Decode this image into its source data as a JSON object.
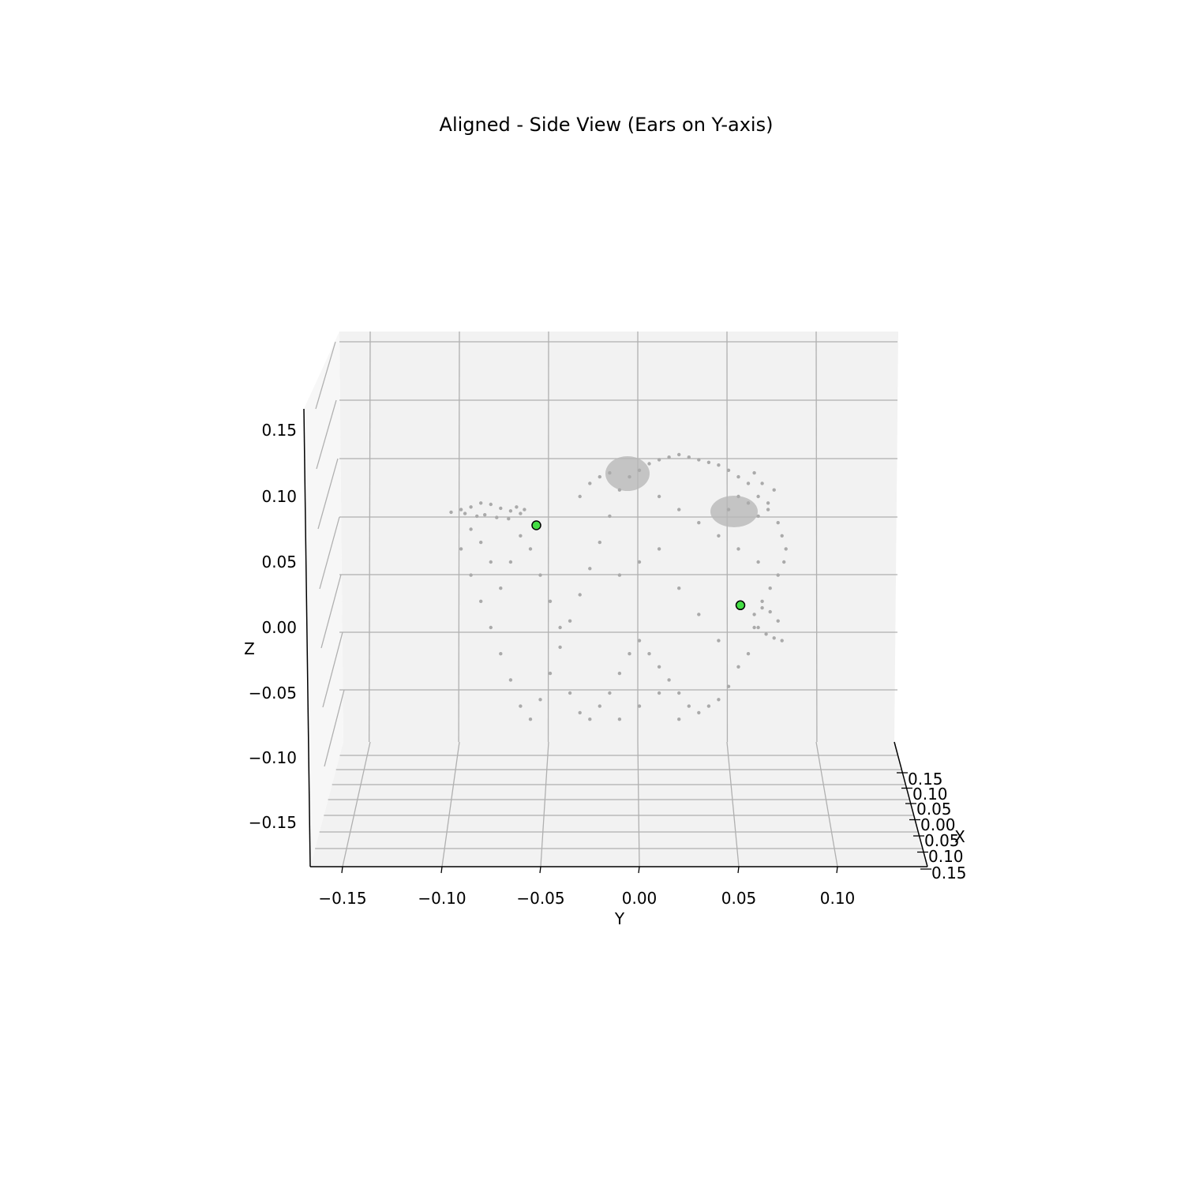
{
  "chart_data": {
    "type": "scatter",
    "projection": "3d",
    "title": "Aligned - Side View (Ears on Y-axis)",
    "xlabel": "X",
    "ylabel": "Y",
    "zlabel": "Z",
    "y_ticks": [
      "−0.15",
      "−0.10",
      "−0.05",
      "0.00",
      "0.05",
      "0.10"
    ],
    "z_ticks": [
      "0.15",
      "0.10",
      "0.05",
      "0.00",
      "−0.05",
      "−0.10",
      "−0.15"
    ],
    "x_ticks": [
      "0.15",
      "0.10",
      "0.05",
      "0.00",
      "0.05",
      "0.10",
      "0.15"
    ],
    "grid": true,
    "colors": {
      "cloud": "#aaaaaa",
      "ear_marker": "#44dd44",
      "marker_edge": "#000000",
      "pane": "#f2f2f2",
      "grid": "#b0b0b0"
    },
    "series": [
      {
        "points_yz": [
          [
            -0.09,
            0.09
          ],
          [
            -0.085,
            0.092
          ],
          [
            -0.08,
            0.095
          ],
          [
            -0.075,
            0.094
          ],
          [
            -0.07,
            0.091
          ],
          [
            -0.065,
            0.089
          ],
          [
            -0.06,
            0.087
          ],
          [
            -0.078,
            0.086
          ],
          [
            -0.072,
            0.084
          ],
          [
            -0.066,
            0.083
          ],
          [
            -0.095,
            0.088
          ],
          [
            -0.088,
            0.087
          ],
          [
            -0.082,
            0.085
          ],
          [
            -0.062,
            0.092
          ],
          [
            -0.058,
            0.09
          ],
          [
            -0.09,
            0.06
          ],
          [
            -0.085,
            0.04
          ],
          [
            -0.08,
            0.02
          ],
          [
            -0.075,
            0.0
          ],
          [
            -0.07,
            -0.02
          ],
          [
            -0.065,
            -0.04
          ],
          [
            -0.06,
            -0.06
          ],
          [
            -0.055,
            -0.07
          ],
          [
            -0.05,
            -0.055
          ],
          [
            -0.045,
            -0.035
          ],
          [
            -0.04,
            -0.015
          ],
          [
            -0.035,
            0.005
          ],
          [
            -0.03,
            0.025
          ],
          [
            -0.025,
            0.045
          ],
          [
            -0.02,
            0.065
          ],
          [
            -0.015,
            0.085
          ],
          [
            -0.01,
            0.105
          ],
          [
            -0.005,
            0.115
          ],
          [
            0.0,
            0.12
          ],
          [
            0.005,
            0.125
          ],
          [
            0.01,
            0.128
          ],
          [
            0.015,
            0.13
          ],
          [
            0.02,
            0.132
          ],
          [
            0.025,
            0.13
          ],
          [
            0.03,
            0.128
          ],
          [
            0.035,
            0.126
          ],
          [
            0.04,
            0.124
          ],
          [
            0.045,
            0.12
          ],
          [
            0.05,
            0.115
          ],
          [
            0.055,
            0.11
          ],
          [
            0.06,
            0.1
          ],
          [
            0.065,
            0.09
          ],
          [
            0.07,
            0.08
          ],
          [
            0.072,
            0.07
          ],
          [
            0.074,
            0.06
          ],
          [
            0.073,
            0.05
          ],
          [
            0.07,
            0.04
          ],
          [
            0.066,
            0.03
          ],
          [
            0.062,
            0.02
          ],
          [
            0.058,
            0.01
          ],
          [
            0.06,
            0.0
          ],
          [
            0.064,
            -0.005
          ],
          [
            0.068,
            -0.008
          ],
          [
            0.072,
            -0.01
          ],
          [
            0.07,
            0.005
          ],
          [
            0.066,
            0.012
          ],
          [
            0.062,
            0.015
          ],
          [
            0.058,
            0.0
          ],
          [
            0.055,
            -0.02
          ],
          [
            0.05,
            -0.03
          ],
          [
            0.045,
            -0.045
          ],
          [
            0.04,
            -0.055
          ],
          [
            0.035,
            -0.06
          ],
          [
            0.03,
            -0.065
          ],
          [
            0.025,
            -0.06
          ],
          [
            0.02,
            -0.05
          ],
          [
            0.015,
            -0.04
          ],
          [
            0.01,
            -0.03
          ],
          [
            0.005,
            -0.02
          ],
          [
            0.0,
            -0.01
          ],
          [
            -0.005,
            -0.02
          ],
          [
            -0.01,
            -0.035
          ],
          [
            -0.015,
            -0.05
          ],
          [
            -0.02,
            -0.06
          ],
          [
            -0.025,
            -0.07
          ],
          [
            -0.03,
            -0.065
          ],
          [
            -0.035,
            -0.05
          ],
          [
            -0.04,
            0.0
          ],
          [
            -0.045,
            0.02
          ],
          [
            -0.05,
            0.04
          ],
          [
            -0.055,
            0.06
          ],
          [
            -0.06,
            0.07
          ],
          [
            -0.065,
            0.05
          ],
          [
            -0.07,
            0.03
          ],
          [
            -0.075,
            0.05
          ],
          [
            -0.08,
            0.065
          ],
          [
            -0.085,
            0.075
          ],
          [
            -0.03,
            0.1
          ],
          [
            -0.025,
            0.11
          ],
          [
            -0.02,
            0.115
          ],
          [
            -0.015,
            0.118
          ],
          [
            0.01,
            0.1
          ],
          [
            0.02,
            0.09
          ],
          [
            0.03,
            0.08
          ],
          [
            0.04,
            0.07
          ],
          [
            0.05,
            0.06
          ],
          [
            0.06,
            0.05
          ],
          [
            0.01,
            0.06
          ],
          [
            0.0,
            0.05
          ],
          [
            -0.01,
            0.04
          ],
          [
            0.02,
            0.03
          ],
          [
            0.03,
            0.01
          ],
          [
            0.04,
            -0.01
          ],
          [
            0.01,
            -0.05
          ],
          [
            0.0,
            -0.06
          ],
          [
            -0.01,
            -0.07
          ],
          [
            0.02,
            -0.07
          ],
          [
            0.045,
            0.09
          ],
          [
            0.05,
            0.1
          ],
          [
            0.055,
            0.095
          ],
          [
            0.06,
            0.085
          ],
          [
            0.065,
            0.095
          ],
          [
            0.068,
            0.105
          ],
          [
            0.062,
            0.11
          ],
          [
            0.058,
            0.118
          ]
        ]
      },
      {
        "name": "",
        "points_yz": [
          [
            -0.052,
            0.078
          ],
          [
            0.051,
            0.017
          ]
        ]
      }
    ]
  }
}
